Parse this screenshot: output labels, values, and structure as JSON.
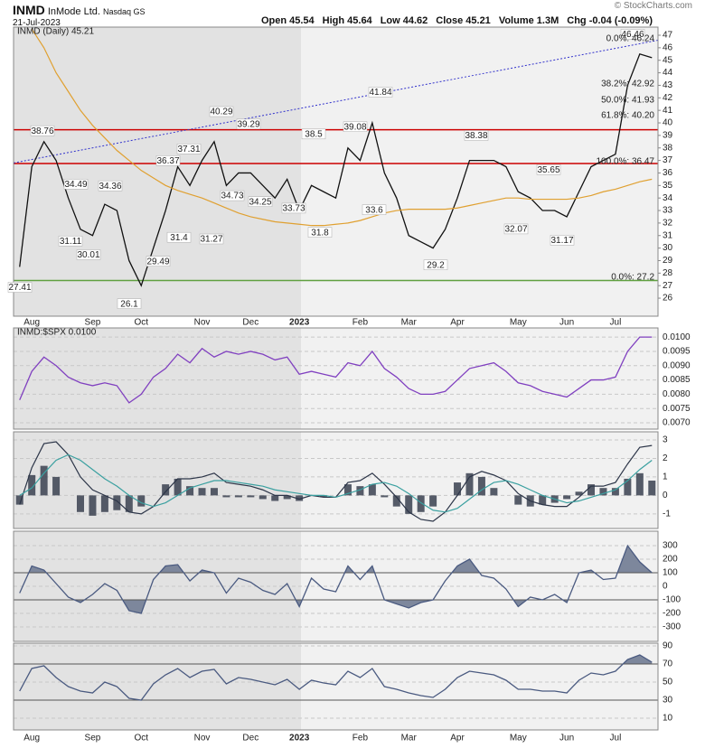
{
  "header": {
    "symbol": "INMD",
    "company": "InMode Ltd.",
    "exchange": "Nasdaq GS",
    "date": "21-Jul-2023",
    "quote": [
      "Open 45.54",
      "High 45.64",
      "Low 44.62",
      "Close 45.21",
      "Volume 1.3M",
      "Chg -0.04 (-0.09%)"
    ],
    "credit": "© StockCharts.com"
  },
  "chart_data": [
    {
      "type": "line",
      "title": "INMD (Daily) 45.21",
      "categories": [
        null,
        "Aug",
        null,
        null,
        null,
        null,
        "Sep",
        null,
        null,
        null,
        "Oct",
        null,
        null,
        null,
        null,
        "Nov",
        null,
        null,
        null,
        "Dec",
        null,
        null,
        null,
        "2023",
        null,
        null,
        null,
        null,
        "Feb",
        null,
        null,
        null,
        "Mar",
        null,
        null,
        null,
        "Apr",
        null,
        null,
        null,
        null,
        "May",
        null,
        null,
        null,
        "Jun",
        null,
        null,
        null,
        "Jul",
        null,
        null,
        null
      ],
      "series": [
        {
          "color": "#111111",
          "values": [
            28.5,
            36.5,
            38.5,
            37,
            34,
            31.5,
            31,
            33.5,
            33,
            29,
            27,
            30,
            33,
            36.5,
            35,
            37,
            38.5,
            35,
            36,
            36,
            35,
            34,
            35.5,
            33,
            35,
            34.5,
            34,
            38,
            37,
            40,
            36,
            34,
            31,
            30.5,
            30,
            31.5,
            34,
            37,
            37,
            37,
            36.5,
            34.5,
            34,
            33,
            33,
            32.5,
            34.5,
            36.5,
            37,
            37.5,
            43,
            45.5,
            45.21
          ]
        },
        {
          "color": "#e0a030",
          "values": [
            null,
            47.5,
            46,
            44,
            42.5,
            41,
            39.8,
            38.8,
            37.8,
            37,
            36.2,
            35.6,
            35,
            34.6,
            34.3,
            34,
            33.6,
            33.2,
            32.8,
            32.5,
            32.3,
            32.1,
            32,
            31.9,
            31.8,
            31.8,
            31.9,
            32,
            32.2,
            32.5,
            32.8,
            33,
            33.1,
            33.1,
            33.1,
            33.1,
            33.2,
            33.4,
            33.6,
            33.8,
            34,
            34,
            33.9,
            33.9,
            33.9,
            33.9,
            34,
            34.2,
            34.5,
            34.7,
            35,
            35.3,
            35.5
          ]
        }
      ],
      "hlines": [
        {
          "value": 39.45,
          "color": "#cc0000"
        },
        {
          "value": 36.75,
          "color": "#cc0000"
        },
        {
          "value": 27.41,
          "color": "#60a040"
        }
      ],
      "trendline": {
        "color": "#3333cc",
        "values": [
          36.8,
          46.6
        ]
      },
      "annotations": [
        27.41,
        38.76,
        34.49,
        31.11,
        30.01,
        34.36,
        26.1,
        29.49,
        36.37,
        31.4,
        37.31,
        31.27,
        40.29,
        34.73,
        39.29,
        34.25,
        33.73,
        38.5,
        31.8,
        39.08,
        33.6,
        41.84,
        29.2,
        38.38,
        32.07,
        35.65,
        31.17,
        46.46
      ],
      "fib_labels": [
        "0.0%: 46.24",
        "38.2%: 42.92",
        "50.0%: 41.93",
        "61.8%: 40.20",
        "100.0%: 36.47",
        "0.0%: 27.2"
      ],
      "ylim": [
        24.56,
        47.65
      ],
      "yticks": [
        26,
        27,
        28,
        29,
        30,
        31,
        32,
        33,
        34,
        35,
        36,
        37,
        38,
        39,
        40,
        41,
        42,
        43,
        44,
        45,
        46,
        47
      ],
      "grid": false
    },
    {
      "type": "line",
      "title": "INMD:$SPX 0.0100",
      "series": [
        {
          "color": "#8040c0",
          "values": [
            0.0078,
            0.0088,
            0.0093,
            0.009,
            0.0086,
            0.0084,
            0.0083,
            0.0084,
            0.0083,
            0.0077,
            0.008,
            0.0086,
            0.0089,
            0.0094,
            0.0091,
            0.0096,
            0.0093,
            0.0095,
            0.0094,
            0.0095,
            0.0094,
            0.0092,
            0.0093,
            0.0087,
            0.0088,
            0.0087,
            0.0086,
            0.0091,
            0.009,
            0.0095,
            0.0089,
            0.0086,
            0.0082,
            0.008,
            0.008,
            0.0081,
            0.0085,
            0.0089,
            0.009,
            0.0091,
            0.0088,
            0.0084,
            0.0083,
            0.0081,
            0.008,
            0.0079,
            0.0082,
            0.0085,
            0.0085,
            0.0086,
            0.0095,
            0.01,
            0.01
          ]
        }
      ],
      "ylim": [
        0.00678,
        0.01032
      ],
      "yticks": [
        {
          "value": 0.007,
          "label": "0.0070"
        },
        {
          "value": 0.0075,
          "label": "0.0075"
        },
        {
          "value": 0.008,
          "label": "0.0080"
        },
        {
          "value": 0.0085,
          "label": "0.0085"
        },
        {
          "value": 0.009,
          "label": "0.0090"
        },
        {
          "value": 0.0095,
          "label": "0.0095"
        },
        {
          "value": 0.01,
          "label": "0.0100"
        }
      ],
      "grid": true
    },
    {
      "type": "combo",
      "series": [
        {
          "type": "bar",
          "color": "#3a4150",
          "values": [
            -0.5,
            1.1,
            1.6,
            1.0,
            0.0,
            -0.9,
            -1.1,
            -0.9,
            -0.8,
            -0.9,
            -0.6,
            0.0,
            0.6,
            0.9,
            0.5,
            0.4,
            0.4,
            -0.1,
            -0.1,
            -0.1,
            -0.2,
            -0.3,
            -0.2,
            -0.3,
            0.0,
            -0.1,
            0.0,
            0.6,
            0.5,
            0.6,
            -0.1,
            -0.6,
            -1.0,
            -0.9,
            -0.6,
            0.0,
            0.7,
            1.2,
            1.0,
            0.4,
            0.0,
            -0.5,
            -0.6,
            -0.5,
            -0.4,
            -0.2,
            0.2,
            0.6,
            0.4,
            0.4,
            0.9,
            1.2,
            0.8
          ]
        },
        {
          "type": "line",
          "color": "#2c3548",
          "values": [
            -0.5,
            1.5,
            2.8,
            2.9,
            2.2,
            1.0,
            0.3,
            0.0,
            -0.3,
            -0.9,
            -1.0,
            -0.6,
            0.2,
            0.9,
            0.9,
            1.0,
            1.2,
            0.7,
            0.6,
            0.5,
            0.3,
            0.0,
            0.0,
            -0.2,
            0.0,
            -0.1,
            -0.1,
            0.7,
            0.8,
            1.2,
            0.6,
            -0.1,
            -0.9,
            -1.3,
            -1.4,
            -0.9,
            0.0,
            1.0,
            1.3,
            1.1,
            0.8,
            0.1,
            -0.3,
            -0.5,
            -0.6,
            -0.6,
            -0.1,
            0.5,
            0.5,
            0.7,
            1.7,
            2.6,
            2.7
          ]
        },
        {
          "type": "line",
          "color": "#3aa0a0",
          "values": [
            0.0,
            0.4,
            1.2,
            1.9,
            2.2,
            1.9,
            1.4,
            0.9,
            0.5,
            0.0,
            -0.4,
            -0.6,
            -0.4,
            0.0,
            0.4,
            0.6,
            0.8,
            0.8,
            0.7,
            0.6,
            0.5,
            0.3,
            0.2,
            0.1,
            0.0,
            0.0,
            -0.1,
            0.1,
            0.3,
            0.6,
            0.7,
            0.5,
            0.1,
            -0.4,
            -0.8,
            -0.9,
            -0.7,
            -0.2,
            0.3,
            0.7,
            0.8,
            0.6,
            0.3,
            0.0,
            -0.2,
            -0.4,
            -0.3,
            -0.1,
            0.1,
            0.3,
            0.8,
            1.4,
            1.9
          ]
        }
      ],
      "ylim": [
        -1.79,
        3.44
      ],
      "yticks": [
        -1,
        0,
        1,
        2,
        3
      ],
      "grid": true
    },
    {
      "type": "band",
      "series": [
        {
          "color": "#4a5a80",
          "fill": "#7d879c",
          "values": [
            -50,
            150,
            120,
            20,
            -80,
            -120,
            -60,
            20,
            -30,
            -180,
            -200,
            50,
            150,
            160,
            40,
            120,
            100,
            -50,
            60,
            30,
            -30,
            -60,
            20,
            -150,
            60,
            -20,
            -40,
            150,
            50,
            150,
            -100,
            -130,
            -160,
            -120,
            -100,
            40,
            150,
            200,
            80,
            60,
            -20,
            -150,
            -80,
            -100,
            -60,
            -120,
            100,
            120,
            50,
            60,
            300,
            180,
            100
          ]
        }
      ],
      "bands": [
        -100,
        100
      ],
      "ylim": [
        -407,
        407
      ],
      "yticks": [
        -300,
        -200,
        -100,
        0,
        100,
        200,
        300
      ],
      "grid": true
    },
    {
      "type": "band",
      "series": [
        {
          "color": "#4a5a80",
          "fill": "#7d879c",
          "values": [
            40,
            65,
            68,
            55,
            45,
            40,
            38,
            50,
            45,
            32,
            30,
            48,
            58,
            65,
            55,
            62,
            64,
            48,
            55,
            53,
            50,
            47,
            53,
            42,
            52,
            49,
            47,
            62,
            55,
            65,
            45,
            42,
            38,
            35,
            33,
            42,
            55,
            62,
            60,
            58,
            52,
            42,
            42,
            40,
            40,
            38,
            52,
            60,
            58,
            62,
            75,
            80,
            72
          ]
        }
      ],
      "bands": [
        30,
        70
      ],
      "ylim": [
        -3,
        93
      ],
      "yticks": [
        10,
        30,
        50,
        70,
        90
      ],
      "grid": true
    }
  ]
}
